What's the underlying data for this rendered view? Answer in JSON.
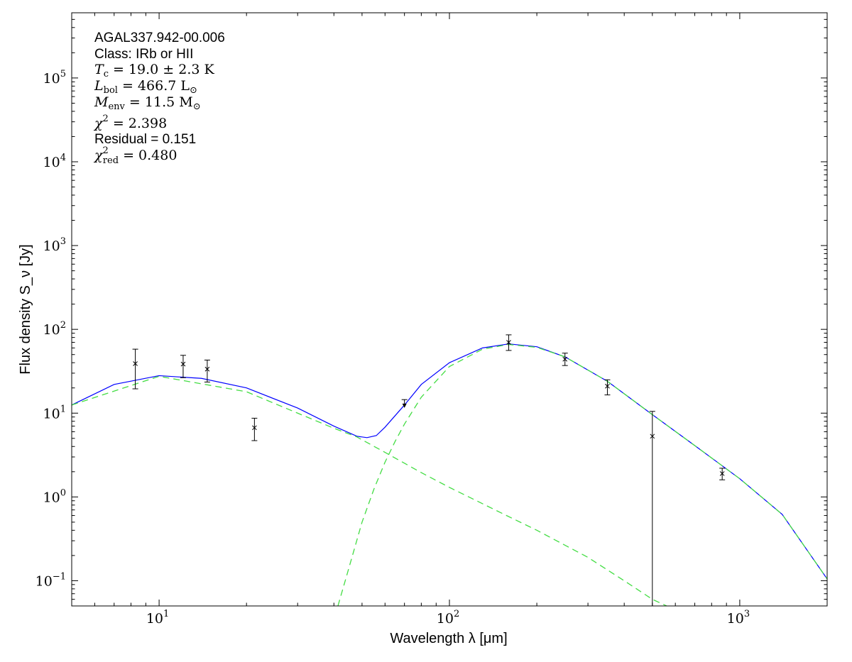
{
  "chart_data": {
    "type": "scatter",
    "xlabel": "Wavelength λ [μm]",
    "ylabel": "Flux density S_ν [Jy]",
    "x_scale": "log",
    "y_scale": "log",
    "xlim": [
      5,
      2000
    ],
    "ylim": [
      0.05,
      600000
    ],
    "grid": false,
    "x_ticks": [
      {
        "value": 10,
        "base": "10",
        "exp": "1"
      },
      {
        "value": 100,
        "base": "10",
        "exp": "2"
      },
      {
        "value": 1000,
        "base": "10",
        "exp": "3"
      }
    ],
    "y_ticks": [
      {
        "value": 0.1,
        "base": "10",
        "exp": "−1"
      },
      {
        "value": 1,
        "base": "10",
        "exp": "0"
      },
      {
        "value": 10,
        "base": "10",
        "exp": "1"
      },
      {
        "value": 100,
        "base": "10",
        "exp": "2"
      },
      {
        "value": 1000,
        "base": "10",
        "exp": "3"
      },
      {
        "value": 10000,
        "base": "10",
        "exp": "4"
      },
      {
        "value": 100000,
        "base": "10",
        "exp": "5"
      }
    ],
    "annotations": {
      "source": "AGAL337.942-00.006",
      "class_line": "Class: IRb or HII",
      "tc": {
        "sym": "T",
        "sub": "c",
        "rest": " = 19.0 ± 2.3 K"
      },
      "lbol": {
        "sym": "L",
        "sub": "bol",
        "rest": " = 466.7 L",
        "rest_sub": "⊙"
      },
      "menv": {
        "sym": "M",
        "sub": "env",
        "rest": " = 11.5 M",
        "rest_sub": "⊙"
      },
      "chi2": {
        "sym": "χ",
        "sup": "2",
        "rest": " = 2.398"
      },
      "residual": "Residual = 0.151",
      "chi2_red": {
        "sym": "χ",
        "sup": "2",
        "sub": "red",
        "rest": " = 0.480"
      }
    },
    "data_points": [
      {
        "x": 8.28,
        "y": 39,
        "ylo": 19.5,
        "yhi": 58
      },
      {
        "x": 12.1,
        "y": 38.5,
        "ylo": 26.5,
        "yhi": 49
      },
      {
        "x": 14.65,
        "y": 33.5,
        "ylo": 23.5,
        "yhi": 43
      },
      {
        "x": 21.3,
        "y": 6.7,
        "ylo": 4.7,
        "yhi": 8.7
      },
      {
        "x": 160,
        "y": 70,
        "ylo": 56,
        "yhi": 86
      },
      {
        "x": 250,
        "y": 44,
        "ylo": 37,
        "yhi": 52
      },
      {
        "x": 350,
        "y": 21,
        "ylo": 16.5,
        "yhi": 25
      },
      {
        "x": 500,
        "y": 5.3,
        "ylo": 0.05,
        "yhi": 10.5
      },
      {
        "x": 870,
        "y": 1.9,
        "ylo": 1.6,
        "yhi": 2.2
      }
    ],
    "upper_limits": [
      {
        "x": 70,
        "y": 14.5,
        "to": 12
      }
    ],
    "series": [
      {
        "kind": "total_fit",
        "color": "#0000ff",
        "style": "solid",
        "x": [
          5,
          7,
          10,
          14,
          20,
          30,
          40,
          48,
          52,
          56,
          60,
          70,
          80,
          100,
          130,
          160,
          200,
          250,
          350,
          500,
          700,
          1000,
          1400,
          2000
        ],
        "y": [
          12.5,
          22,
          28,
          26,
          20,
          11.5,
          7,
          5.3,
          5.1,
          5.4,
          6.8,
          12.5,
          22,
          40,
          60,
          67,
          62,
          47,
          24,
          9.6,
          4.1,
          1.65,
          0.62,
          0.105
        ]
      },
      {
        "kind": "hot_component",
        "color": "#44dd44",
        "style": "dashed",
        "x": [
          5,
          10,
          20,
          30,
          40,
          48,
          60,
          80,
          100,
          150,
          200,
          300,
          400,
          500,
          560
        ],
        "y": [
          12.5,
          27.5,
          18,
          10,
          6.6,
          5.2,
          3.4,
          1.95,
          1.3,
          0.65,
          0.4,
          0.19,
          0.1,
          0.06,
          0.05
        ]
      },
      {
        "kind": "cold_component",
        "color": "#44dd44",
        "style": "dashed",
        "x": [
          41.3,
          45,
          50,
          55,
          60,
          65,
          70,
          80,
          100,
          130,
          160,
          200,
          250,
          350,
          500,
          700,
          1000,
          1400,
          2000
        ],
        "y": [
          0.05,
          0.14,
          0.5,
          1.25,
          2.6,
          4.6,
          7.4,
          15.5,
          36,
          58,
          66,
          61,
          47,
          24,
          9.6,
          4.1,
          1.65,
          0.62,
          0.105
        ]
      }
    ]
  }
}
